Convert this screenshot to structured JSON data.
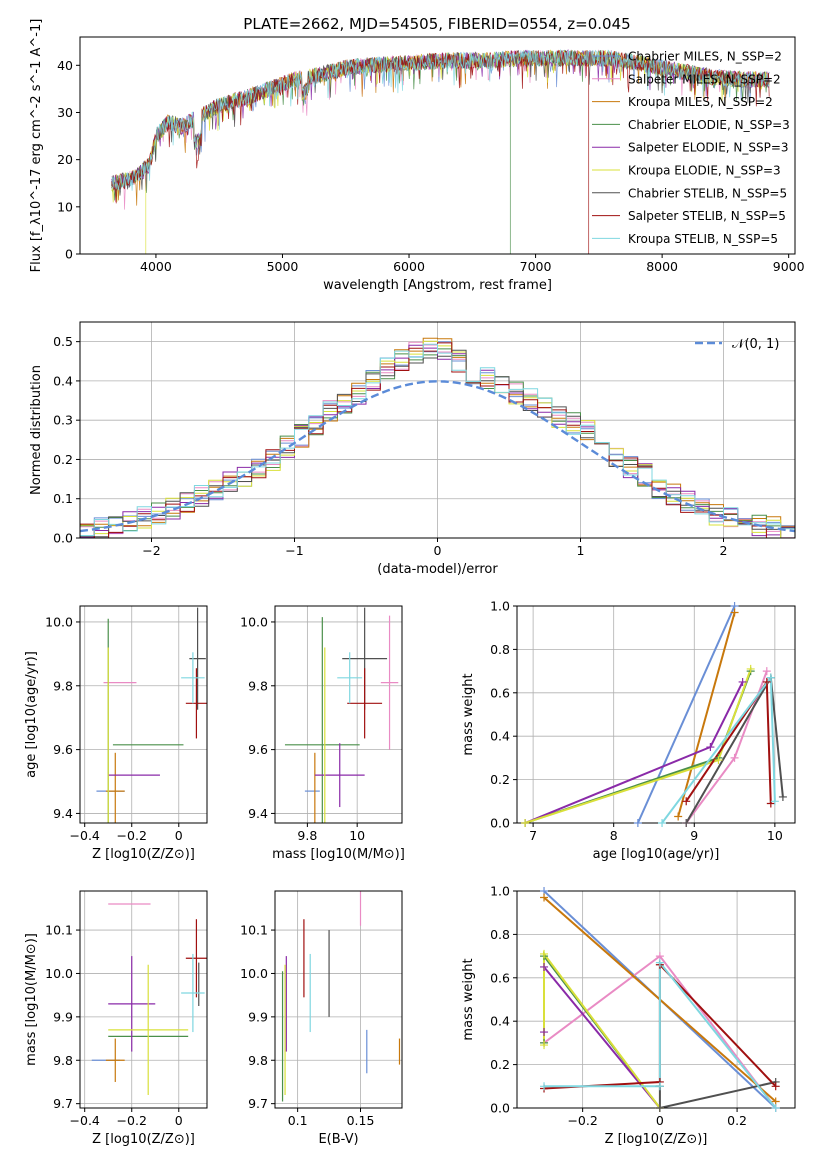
{
  "figure": {
    "title": "PLATE=2662, MJD=54505, FIBERID=0554, z=0.045"
  },
  "chart_data": [
    {
      "panel": "spectrum",
      "type": "line",
      "xlabel": "wavelength [Angstrom, rest frame]",
      "ylabel": "Flux [f_λ10^-17 erg cm^-2 s^-1 A^-1]",
      "xlim": [
        3400,
        9050
      ],
      "ylim": [
        0,
        46
      ],
      "xticks": [
        4000,
        5000,
        6000,
        7000,
        8000,
        9000
      ],
      "yticks": [
        0,
        10,
        20,
        30,
        40
      ],
      "legend": "top-right",
      "legend_entries": [
        {
          "name": "Chabrier MILES, N_SSP=2",
          "color": "#6a8fd6"
        },
        {
          "name": "Salpeter MILES, N_SSP=2",
          "color": "#e98bc4"
        },
        {
          "name": "Kroupa MILES, N_SSP=2",
          "color": "#c8780c"
        },
        {
          "name": "Chabrier ELODIE, N_SSP=3",
          "color": "#4a8f4a"
        },
        {
          "name": "Salpeter ELODIE, N_SSP=3",
          "color": "#8a2aa8"
        },
        {
          "name": "Kroupa ELODIE, N_SSP=3",
          "color": "#d9e03a"
        },
        {
          "name": "Chabrier STELIB, N_SSP=5",
          "color": "#505050"
        },
        {
          "name": "Salpeter STELIB, N_SSP=5",
          "color": "#a01010"
        },
        {
          "name": "Kroupa STELIB, N_SSP=5",
          "color": "#7fd7e0"
        }
      ],
      "continuum": {
        "x": [
          3650,
          3750,
          3850,
          3950,
          4000,
          4100,
          4200,
          4300,
          4400,
          4500,
          4700,
          4900,
          5100,
          5300,
          5500,
          5700,
          6000,
          6300,
          6600,
          6900,
          7200,
          7400,
          7600,
          7800,
          8000,
          8200,
          8400,
          8600,
          8800,
          8850
        ],
        "y": [
          15,
          15.5,
          16.5,
          19,
          25,
          28,
          27,
          28.5,
          30,
          31.5,
          33,
          35,
          37,
          38,
          39.5,
          40,
          40.5,
          41,
          41,
          41.5,
          41.5,
          41.5,
          41.5,
          40.5,
          39.5,
          38.5,
          37.5,
          37,
          37,
          37
        ]
      },
      "drops": [
        {
          "series": "Kroupa ELODIE, N_SSP=3",
          "x": 3920,
          "to": 0
        },
        {
          "series": "Chabrier ELODIE, N_SSP=3",
          "x": 6800,
          "to": 0
        },
        {
          "series": "Salpeter STELIB, N_SSP=5",
          "x": 7420,
          "to": 0
        }
      ]
    },
    {
      "panel": "residual_histogram",
      "type": "line",
      "xlabel": "(data-model)/error",
      "ylabel": "Normed distribution",
      "xlim": [
        -2.5,
        2.5
      ],
      "ylim": [
        0,
        0.55
      ],
      "xticks": [
        -2,
        -1,
        0,
        1,
        2
      ],
      "yticks": [
        0.0,
        0.1,
        0.2,
        0.3,
        0.4,
        0.5
      ],
      "grid": true,
      "legend": "top-right",
      "reference_curve": {
        "name": "𝒩(0, 1)",
        "color": "#5b8bd8",
        "mean": 0,
        "sigma": 1
      },
      "bin_edges": [
        -2.5,
        -2.4,
        -2.3,
        -2.2,
        -2.1,
        -2.0,
        -1.9,
        -1.8,
        -1.7,
        -1.6,
        -1.5,
        -1.4,
        -1.3,
        -1.2,
        -1.1,
        -1.0,
        -0.9,
        -0.8,
        -0.7,
        -0.6,
        -0.5,
        -0.4,
        -0.3,
        -0.2,
        -0.1,
        0.0,
        0.1,
        0.2,
        0.3,
        0.4,
        0.5,
        0.6,
        0.7,
        0.8,
        0.9,
        1.0,
        1.1,
        1.2,
        1.3,
        1.4,
        1.5,
        1.6,
        1.7,
        1.8,
        1.9,
        2.0,
        2.1,
        2.2,
        2.3,
        2.4,
        2.5
      ],
      "series_base": [
        0.02,
        0.025,
        0.03,
        0.045,
        0.05,
        0.06,
        0.075,
        0.09,
        0.105,
        0.12,
        0.14,
        0.16,
        0.18,
        0.2,
        0.23,
        0.26,
        0.29,
        0.32,
        0.34,
        0.37,
        0.4,
        0.43,
        0.45,
        0.47,
        0.48,
        0.48,
        0.45,
        0.42,
        0.41,
        0.39,
        0.37,
        0.35,
        0.33,
        0.31,
        0.29,
        0.27,
        0.24,
        0.21,
        0.18,
        0.16,
        0.13,
        0.11,
        0.09,
        0.075,
        0.06,
        0.05,
        0.04,
        0.03,
        0.025,
        0.02
      ]
    },
    {
      "panel": "age_vs_Z",
      "type": "scatter",
      "xlabel": "Z [log10(Z/Z⊙)]",
      "ylabel": "age  [log10(age/yr)]",
      "xlim": [
        -0.42,
        0.12
      ],
      "ylim": [
        9.37,
        10.05
      ],
      "xticks": [
        -0.4,
        -0.2,
        0.0
      ],
      "yticks": [
        9.4,
        9.6,
        9.8,
        10.0
      ],
      "points": [
        {
          "color": "#6a8fd6",
          "x": -0.29,
          "y": 9.47,
          "xerr": 0.06,
          "yerr": 0.0
        },
        {
          "color": "#c8780c",
          "x": -0.27,
          "y": 9.47,
          "xerr": 0.04,
          "yerr": 0.12
        },
        {
          "color": "#e98bc4",
          "x": -0.25,
          "y": 9.81,
          "xerr": 0.07,
          "yerr": 0.0
        },
        {
          "color": "#4a8f4a",
          "x": -0.3,
          "y": 9.61,
          "xerr": 0.0,
          "yerr": 0.4
        },
        {
          "color": "#4a8f4a",
          "x": -0.13,
          "y": 9.615,
          "xerr": 0.15,
          "yerr": 0.0
        },
        {
          "color": "#8a2aa8",
          "x": -0.19,
          "y": 9.52,
          "xerr": 0.11,
          "yerr": 0.0
        },
        {
          "color": "#d9e03a",
          "x": -0.3,
          "y": 9.61,
          "xerr": 0.0,
          "yerr": 0.31
        },
        {
          "color": "#505050",
          "x": 0.08,
          "y": 9.885,
          "xerr": 0.035,
          "yerr": 0.16
        },
        {
          "color": "#a01010",
          "x": 0.075,
          "y": 9.745,
          "xerr": 0.045,
          "yerr": 0.11
        },
        {
          "color": "#7fd7e0",
          "x": 0.06,
          "y": 9.825,
          "xerr": 0.05,
          "yerr": 0.08
        }
      ]
    },
    {
      "panel": "age_vs_mass",
      "type": "scatter",
      "xlabel": "mass [log10(M/M⊙)]",
      "ylabel": "",
      "xlim": [
        9.67,
        10.18
      ],
      "ylim": [
        9.37,
        10.05
      ],
      "xticks": [
        9.8,
        10.0
      ],
      "yticks": [
        9.4,
        9.6,
        9.8,
        10.0
      ],
      "points": [
        {
          "color": "#6a8fd6",
          "x": 9.82,
          "y": 9.47,
          "xerr": 0.03,
          "yerr": 0.0
        },
        {
          "color": "#c8780c",
          "x": 9.83,
          "y": 9.47,
          "xerr": 0.0,
          "yerr": 0.12
        },
        {
          "color": "#e98bc4",
          "x": 10.13,
          "y": 9.81,
          "xerr": 0.035,
          "yerr": 0.21
        },
        {
          "color": "#4a8f4a",
          "x": 9.86,
          "y": 9.615,
          "xerr": 0.15,
          "yerr": 0.4
        },
        {
          "color": "#8a2aa8",
          "x": 9.93,
          "y": 9.52,
          "xerr": 0.1,
          "yerr": 0.1
        },
        {
          "color": "#d9e03a",
          "x": 9.87,
          "y": 9.61,
          "xerr": 0.0,
          "yerr": 0.31
        },
        {
          "color": "#505050",
          "x": 10.03,
          "y": 9.885,
          "xerr": 0.09,
          "yerr": 0.16
        },
        {
          "color": "#a01010",
          "x": 10.03,
          "y": 9.745,
          "xerr": 0.07,
          "yerr": 0.11
        },
        {
          "color": "#7fd7e0",
          "x": 9.97,
          "y": 9.825,
          "xerr": 0.05,
          "yerr": 0.08
        }
      ]
    },
    {
      "panel": "mass_weight_vs_age",
      "type": "line",
      "xlabel": "age  [log10(age/yr)]",
      "ylabel": "mass weight",
      "xlim": [
        6.8,
        10.25
      ],
      "ylim": [
        0,
        1
      ],
      "xticks": [
        7,
        8,
        9,
        10
      ],
      "yticks": [
        0.0,
        0.2,
        0.4,
        0.6,
        0.8,
        1.0
      ],
      "grid": true,
      "series": [
        {
          "name": "Chabrier MILES",
          "color": "#6a8fd6",
          "x": [
            8.3,
            9.5
          ],
          "y": [
            0.0,
            1.0
          ]
        },
        {
          "name": "Salpeter MILES",
          "color": "#e98bc4",
          "x": [
            8.9,
            9.5,
            9.9
          ],
          "y": [
            0.0,
            0.3,
            0.7
          ]
        },
        {
          "name": "Kroupa MILES",
          "color": "#c8780c",
          "x": [
            8.8,
            9.5
          ],
          "y": [
            0.03,
            0.97
          ]
        },
        {
          "name": "Chabrier ELODIE",
          "color": "#4a8f4a",
          "x": [
            6.9,
            9.3,
            9.7
          ],
          "y": [
            0.0,
            0.3,
            0.7
          ]
        },
        {
          "name": "Salpeter ELODIE",
          "color": "#8a2aa8",
          "x": [
            6.9,
            9.2,
            9.6
          ],
          "y": [
            0.0,
            0.35,
            0.65
          ]
        },
        {
          "name": "Kroupa ELODIE",
          "color": "#d9e03a",
          "x": [
            6.9,
            9.3,
            9.7
          ],
          "y": [
            0.0,
            0.29,
            0.71
          ]
        },
        {
          "name": "Chabrier STELIB",
          "color": "#505050",
          "x": [
            8.9,
            9.95,
            10.1
          ],
          "y": [
            0.0,
            0.67,
            0.12
          ]
        },
        {
          "name": "Salpeter STELIB",
          "color": "#a01010",
          "x": [
            8.9,
            9.9,
            9.95
          ],
          "y": [
            0.1,
            0.65,
            0.09
          ]
        },
        {
          "name": "Kroupa STELIB",
          "color": "#7fd7e0",
          "x": [
            8.6,
            9.95,
            10.0
          ],
          "y": [
            0.0,
            0.67,
            0.1
          ]
        }
      ]
    },
    {
      "panel": "mass_vs_Z",
      "type": "scatter",
      "xlabel": "Z [log10(Z/Z⊙)]",
      "ylabel": "mass [log10(M/M⊙)]",
      "xlim": [
        -0.42,
        0.12
      ],
      "ylim": [
        9.69,
        10.19
      ],
      "xticks": [
        -0.4,
        -0.2,
        0.0
      ],
      "yticks": [
        9.7,
        9.8,
        9.9,
        10.0,
        10.1
      ],
      "points": [
        {
          "color": "#6a8fd6",
          "x": -0.31,
          "y": 9.8,
          "xerr": 0.06,
          "yerr": 0.0
        },
        {
          "color": "#c8780c",
          "x": -0.27,
          "y": 9.8,
          "xerr": 0.04,
          "yerr": 0.05
        },
        {
          "color": "#e98bc4",
          "x": -0.21,
          "y": 10.16,
          "xerr": 0.09,
          "yerr": 0.0
        },
        {
          "color": "#4a8f4a",
          "x": -0.13,
          "y": 9.855,
          "xerr": 0.17,
          "yerr": 0.0
        },
        {
          "color": "#8a2aa8",
          "x": -0.2,
          "y": 9.93,
          "xerr": 0.1,
          "yerr": 0.11
        },
        {
          "color": "#d9e03a",
          "x": -0.13,
          "y": 9.87,
          "xerr": 0.17,
          "yerr": 0.15
        },
        {
          "color": "#505050",
          "x": 0.085,
          "y": 9.975,
          "xerr": 0.0,
          "yerr": 0.05
        },
        {
          "color": "#a01010",
          "x": 0.075,
          "y": 10.035,
          "xerr": 0.045,
          "yerr": 0.09
        },
        {
          "color": "#7fd7e0",
          "x": 0.06,
          "y": 9.955,
          "xerr": 0.05,
          "yerr": 0.09
        }
      ]
    },
    {
      "panel": "mass_vs_ebv",
      "type": "scatter",
      "xlabel": "E(B-V)",
      "ylabel": "",
      "xlim": [
        0.082,
        0.183
      ],
      "ylim": [
        9.69,
        10.19
      ],
      "xticks": [
        0.1,
        0.15
      ],
      "yticks": [
        9.7,
        9.8,
        9.9,
        10.0,
        10.1
      ],
      "points": [
        {
          "color": "#6a8fd6",
          "x": 0.155,
          "y": 9.82,
          "xerr": 0.0,
          "yerr": 0.05
        },
        {
          "color": "#c8780c",
          "x": 0.181,
          "y": 9.82,
          "xerr": 0.0,
          "yerr": 0.03
        },
        {
          "color": "#e98bc4",
          "x": 0.15,
          "y": 10.16,
          "xerr": 0.0,
          "yerr": 0.05
        },
        {
          "color": "#4a8f4a",
          "x": 0.088,
          "y": 9.855,
          "xerr": 0.0,
          "yerr": 0.15
        },
        {
          "color": "#8a2aa8",
          "x": 0.091,
          "y": 9.93,
          "xerr": 0.0,
          "yerr": 0.11
        },
        {
          "color": "#d9e03a",
          "x": 0.09,
          "y": 9.87,
          "xerr": 0.0,
          "yerr": 0.15
        },
        {
          "color": "#505050",
          "x": 0.125,
          "y": 10.0,
          "xerr": 0.0,
          "yerr": 0.1
        },
        {
          "color": "#a01010",
          "x": 0.105,
          "y": 10.035,
          "xerr": 0.0,
          "yerr": 0.09
        },
        {
          "color": "#7fd7e0",
          "x": 0.11,
          "y": 9.955,
          "xerr": 0.0,
          "yerr": 0.09
        }
      ]
    },
    {
      "panel": "mass_weight_vs_Z",
      "type": "line",
      "xlabel": "Z [log10(Z/Z⊙)]",
      "ylabel": "mass weight",
      "xlim": [
        -0.37,
        0.35
      ],
      "ylim": [
        0,
        1
      ],
      "xticks": [
        -0.2,
        0.0,
        0.2
      ],
      "yticks": [
        0.0,
        0.2,
        0.4,
        0.6,
        0.8,
        1.0
      ],
      "grid": true,
      "series": [
        {
          "name": "Chabrier MILES",
          "color": "#6a8fd6",
          "x": [
            -0.3,
            0.3
          ],
          "y": [
            1.0,
            0.0
          ]
        },
        {
          "name": "Salpeter MILES",
          "color": "#e98bc4",
          "x": [
            -0.3,
            0.0,
            0.3
          ],
          "y": [
            0.3,
            0.7,
            0.0
          ]
        },
        {
          "name": "Kroupa MILES",
          "color": "#c8780c",
          "x": [
            -0.3,
            0.3
          ],
          "y": [
            0.97,
            0.03
          ]
        },
        {
          "name": "Chabrier ELODIE",
          "color": "#4a8f4a",
          "x": [
            -0.3,
            -0.3,
            0.0
          ],
          "y": [
            0.3,
            0.7,
            0.0
          ]
        },
        {
          "name": "Salpeter ELODIE",
          "color": "#8a2aa8",
          "x": [
            -0.3,
            -0.3,
            0.0
          ],
          "y": [
            0.35,
            0.65,
            0.0
          ]
        },
        {
          "name": "Kroupa ELODIE",
          "color": "#d9e03a",
          "x": [
            -0.3,
            -0.3,
            0.0
          ],
          "y": [
            0.29,
            0.71,
            0.0
          ]
        },
        {
          "name": "Chabrier STELIB",
          "color": "#505050",
          "x": [
            0.0,
            0.0,
            0.3
          ],
          "y": [
            0.1,
            0.0,
            0.12
          ]
        },
        {
          "name": "Salpeter STELIB",
          "color": "#a01010",
          "x": [
            -0.3,
            0.0,
            0.0,
            0.3
          ],
          "y": [
            0.09,
            0.12,
            0.66,
            0.1
          ]
        },
        {
          "name": "Kroupa STELIB",
          "color": "#7fd7e0",
          "x": [
            -0.3,
            0.0,
            0.0,
            0.3
          ],
          "y": [
            0.1,
            0.1,
            0.67,
            0.0
          ]
        }
      ]
    }
  ]
}
